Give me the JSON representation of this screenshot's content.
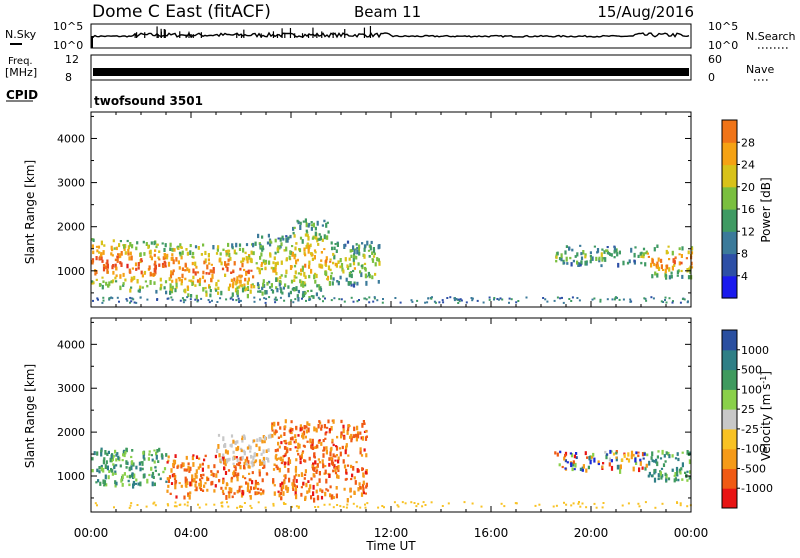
{
  "header": {
    "title": "Dome C East (fitACF)",
    "beam": "Beam 11",
    "date": "15/Aug/2016"
  },
  "top_panels": {
    "nsky_label": "N.Sky",
    "nsky_ticks": [
      "10^5",
      "10^0"
    ],
    "nsearch_label": "N.Search",
    "nsearch_ticks": [
      "10^5",
      "10^0"
    ],
    "freq_label": "Freq.",
    "freq_unit": "[MHz]",
    "freq_ticks": [
      "12",
      "8"
    ],
    "nave_label": "Nave",
    "nave_ticks": [
      "60",
      "0"
    ],
    "cpid_label": "CPID",
    "cpid_value": "twofsound 3501"
  },
  "colors": {
    "power_scale": [
      "#1a1aee",
      "#2d4fa6",
      "#3b7a9a",
      "#3f9a63",
      "#7abf3f",
      "#d8c21a",
      "#f5a214",
      "#f07418",
      "#e84a1e",
      "#e01c1c"
    ],
    "velocity_scale": [
      "#e81414",
      "#f05a14",
      "#f59a18",
      "#f8c224",
      "#c8c8c8",
      "#8ad04a",
      "#3f9a5e",
      "#2f7f86",
      "#2a4fa0",
      "#1a2ad8"
    ]
  },
  "chart_data": [
    {
      "type": "heatmap",
      "name": "power-panel",
      "title": "",
      "ylabel": "Slant Range [km]",
      "xlabel": "",
      "x_ticks": [
        "00:00",
        "04:00",
        "08:00",
        "12:00",
        "16:00",
        "20:00",
        "00:00"
      ],
      "x_range_hours": [
        0,
        24
      ],
      "y_ticks": [
        1000,
        2000,
        3000,
        4000
      ],
      "ylim": [
        180,
        4600
      ],
      "colorbar": {
        "label": "Power [dB]",
        "ticks": [
          4,
          8,
          12,
          16,
          20,
          24,
          28
        ],
        "range": [
          0,
          32
        ]
      },
      "regions": [
        {
          "t0": 0.0,
          "t1": 1.5,
          "r0": 650,
          "r1": 1750,
          "level": 0.85
        },
        {
          "t0": 1.5,
          "t1": 3.5,
          "r0": 550,
          "r1": 1700,
          "level": 0.82
        },
        {
          "t0": 3.5,
          "t1": 6.5,
          "r0": 450,
          "r1": 1650,
          "level": 0.8
        },
        {
          "t0": 6.5,
          "t1": 8.0,
          "r0": 500,
          "r1": 1850,
          "level": 0.6
        },
        {
          "t0": 8.0,
          "t1": 9.6,
          "r0": 400,
          "r1": 2200,
          "level": 0.65
        },
        {
          "t0": 9.6,
          "t1": 11.5,
          "r0": 700,
          "r1": 1700,
          "level": 0.55
        },
        {
          "t0": 18.5,
          "t1": 22.2,
          "r0": 1150,
          "r1": 1600,
          "level": 0.45
        },
        {
          "t0": 22.2,
          "t1": 24.0,
          "r0": 900,
          "r1": 1600,
          "level": 0.8
        }
      ]
    },
    {
      "type": "heatmap",
      "name": "velocity-panel",
      "title": "",
      "ylabel": "Slant Range [km]",
      "xlabel": "Time UT",
      "x_ticks": [
        "00:00",
        "04:00",
        "08:00",
        "12:00",
        "16:00",
        "20:00",
        "00:00"
      ],
      "x_range_hours": [
        0,
        24
      ],
      "y_ticks": [
        1000,
        2000,
        3000,
        4000
      ],
      "ylim": [
        180,
        4600
      ],
      "colorbar": {
        "label": "Velocity [m s^-1]",
        "ticks": [
          "1000",
          "500",
          "100",
          "25",
          "-25",
          "-100",
          "-500",
          "-1000"
        ]
      },
      "regions": [
        {
          "t0": 0.0,
          "t1": 3.0,
          "r0": 800,
          "r1": 1650,
          "kind": "green"
        },
        {
          "t0": 3.0,
          "t1": 7.0,
          "r0": 550,
          "r1": 1500,
          "kind": "orange"
        },
        {
          "t0": 5.0,
          "t1": 7.2,
          "r0": 1300,
          "r1": 2000,
          "kind": "gray"
        },
        {
          "t0": 7.2,
          "t1": 11.0,
          "r0": 500,
          "r1": 2300,
          "kind": "orange"
        },
        {
          "t0": 18.5,
          "t1": 22.2,
          "r0": 1150,
          "r1": 1600,
          "kind": "mixed"
        },
        {
          "t0": 22.2,
          "t1": 24.0,
          "r0": 900,
          "r1": 1600,
          "kind": "green"
        }
      ]
    }
  ]
}
